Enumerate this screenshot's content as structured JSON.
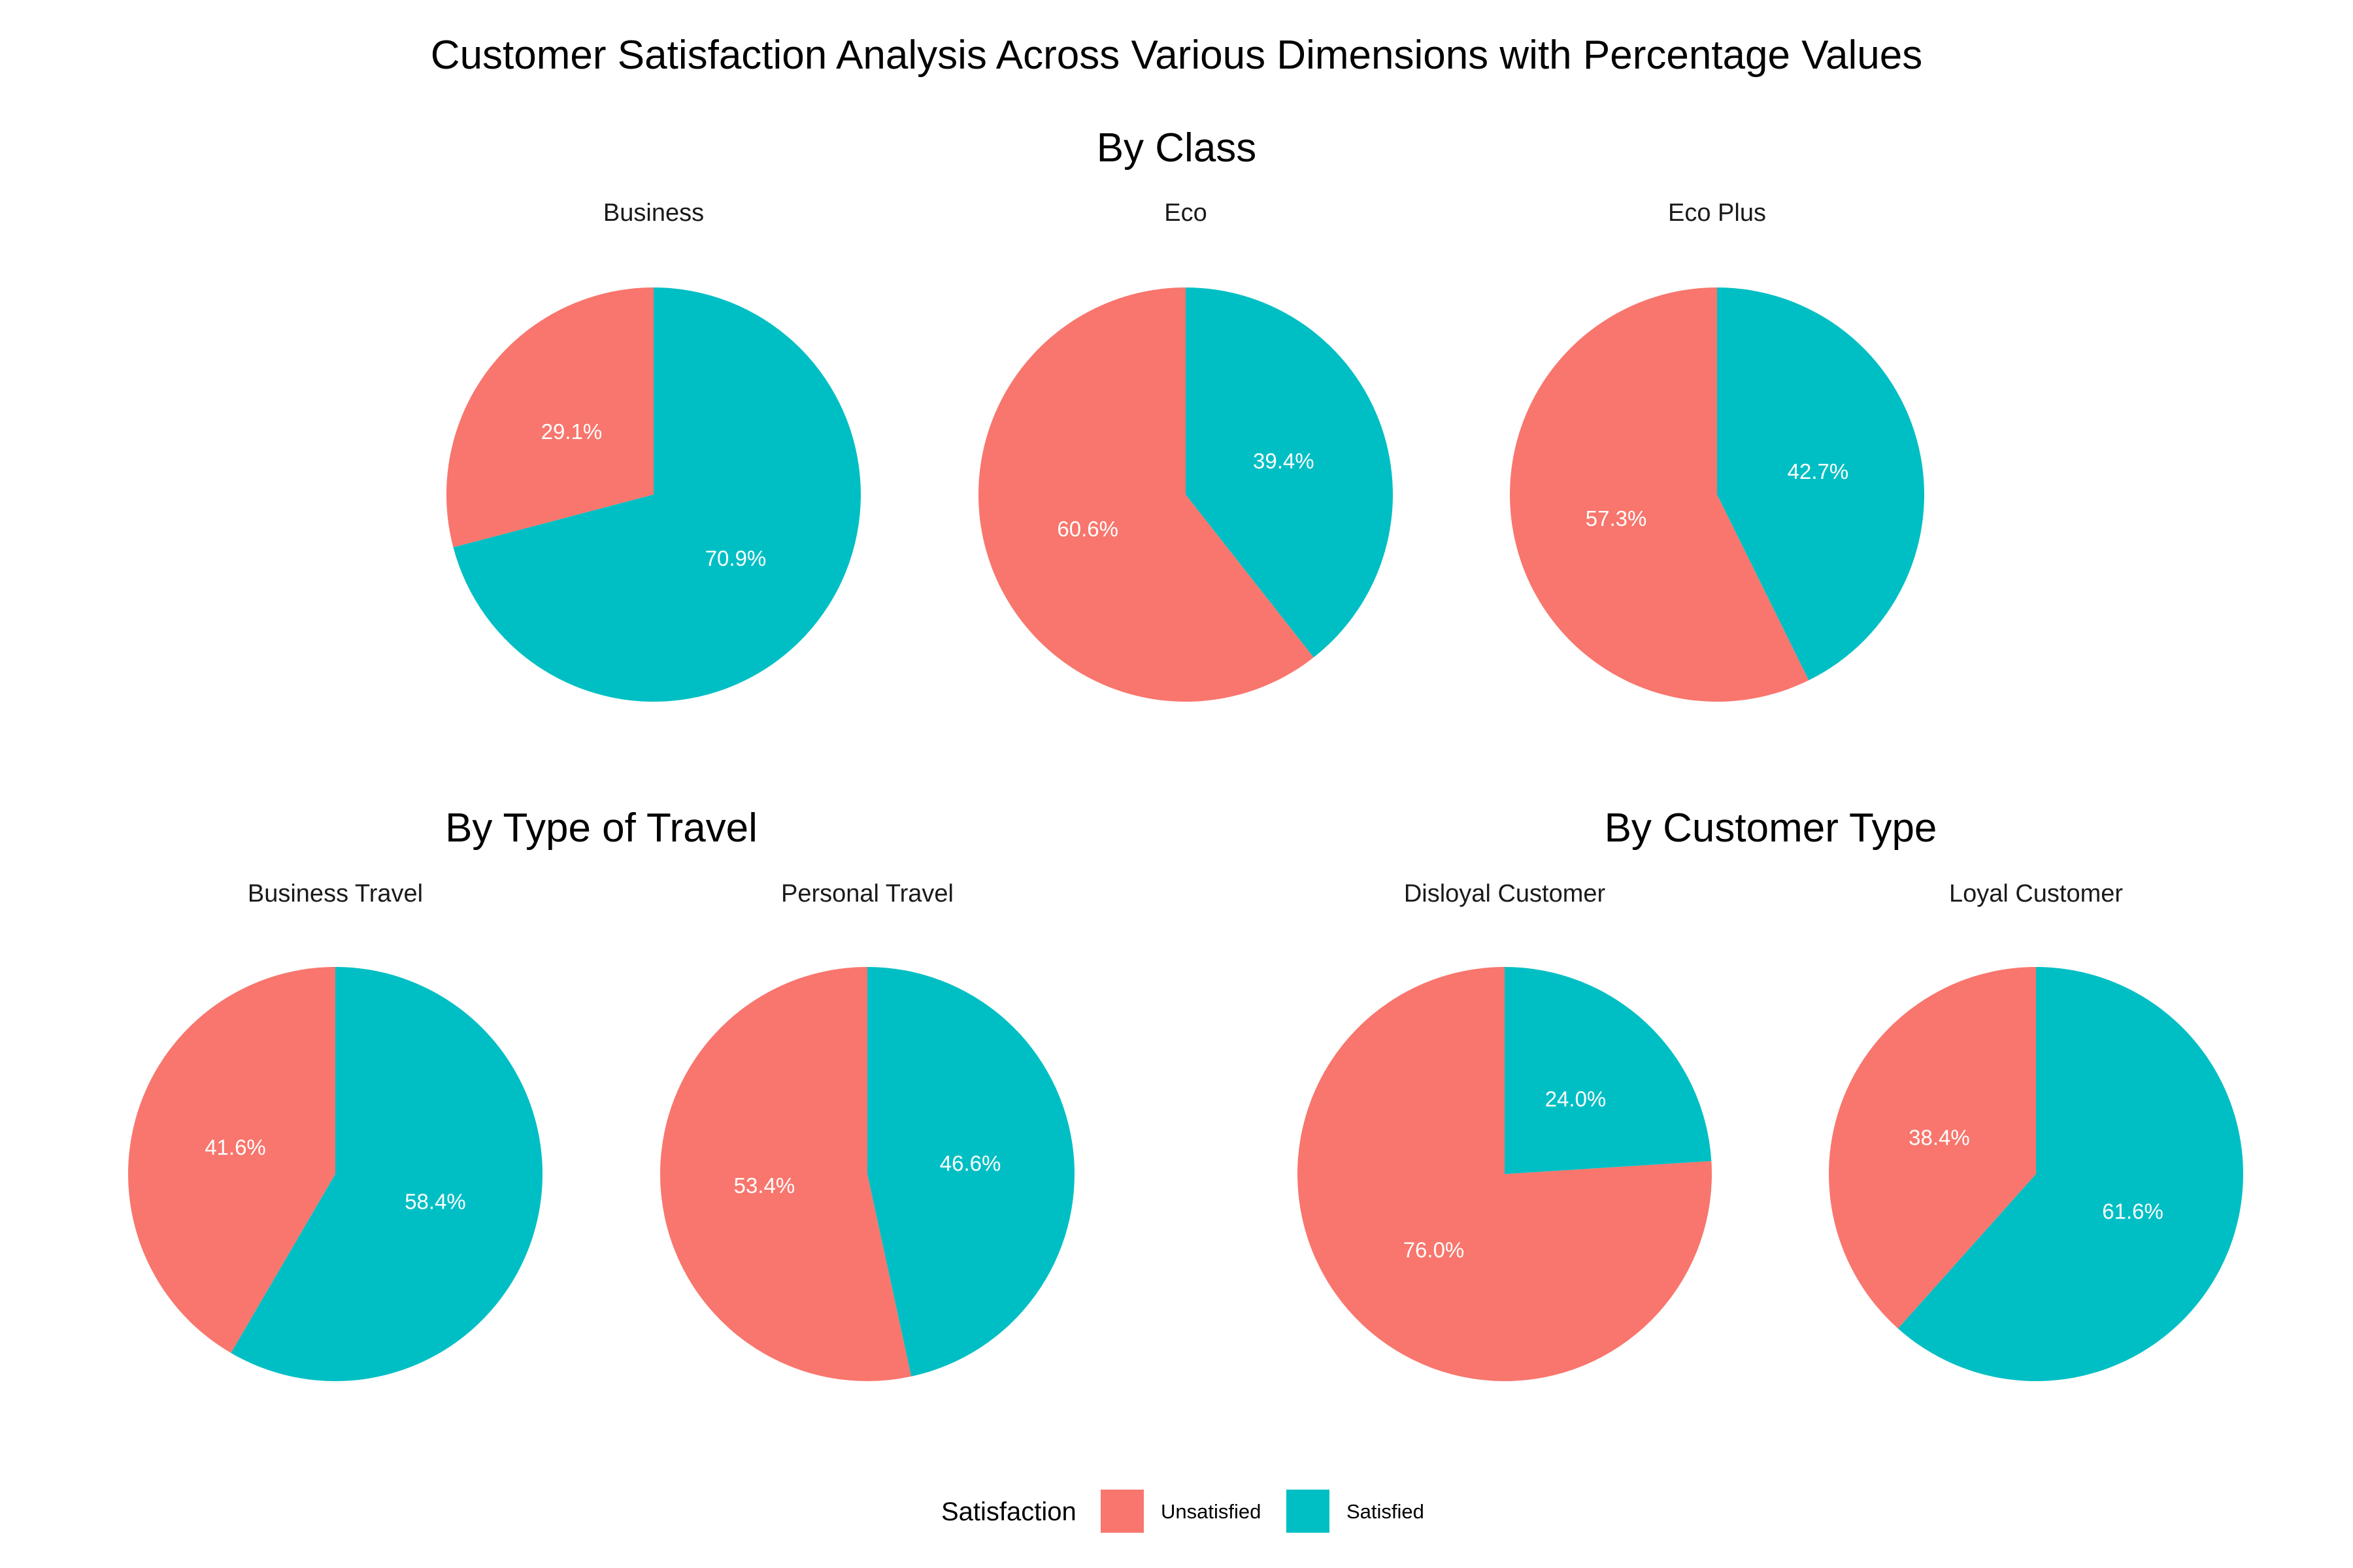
{
  "chart_data": {
    "type": "pie",
    "title": "Customer Satisfaction Analysis Across Various Dimensions with Percentage Values",
    "categories": [
      "Unsatisfied",
      "Satisfied"
    ],
    "colors": {
      "Unsatisfied": "#F8766D",
      "Satisfied": "#00BFC4"
    },
    "legend": {
      "title": "Satisfaction",
      "position": "bottom",
      "entries": [
        "Unsatisfied",
        "Satisfied"
      ]
    },
    "groups": [
      {
        "title": "By Class",
        "panels": [
          {
            "name": "Business",
            "labels": [
              "29.1%",
              "70.9%"
            ],
            "values": [
              29.1,
              70.9
            ]
          },
          {
            "name": "Eco",
            "labels": [
              "60.6%",
              "39.4%"
            ],
            "values": [
              60.6,
              39.4
            ]
          },
          {
            "name": "Eco Plus",
            "labels": [
              "57.3%",
              "42.7%"
            ],
            "values": [
              57.3,
              42.7
            ]
          }
        ]
      },
      {
        "title": "By Type of Travel",
        "panels": [
          {
            "name": "Business Travel",
            "labels": [
              "41.6%",
              "58.4%"
            ],
            "values": [
              41.6,
              58.4
            ]
          },
          {
            "name": "Personal Travel",
            "labels": [
              "53.4%",
              "46.6%"
            ],
            "values": [
              53.4,
              46.6
            ]
          }
        ]
      },
      {
        "title": "By Customer Type",
        "panels": [
          {
            "name": "Disloyal Customer",
            "labels": [
              "76.0%",
              "24.0%"
            ],
            "values": [
              76.0,
              24.0
            ]
          },
          {
            "name": "Loyal Customer",
            "labels": [
              "38.4%",
              "61.6%"
            ],
            "values": [
              38.4,
              61.6
            ]
          }
        ]
      }
    ]
  }
}
